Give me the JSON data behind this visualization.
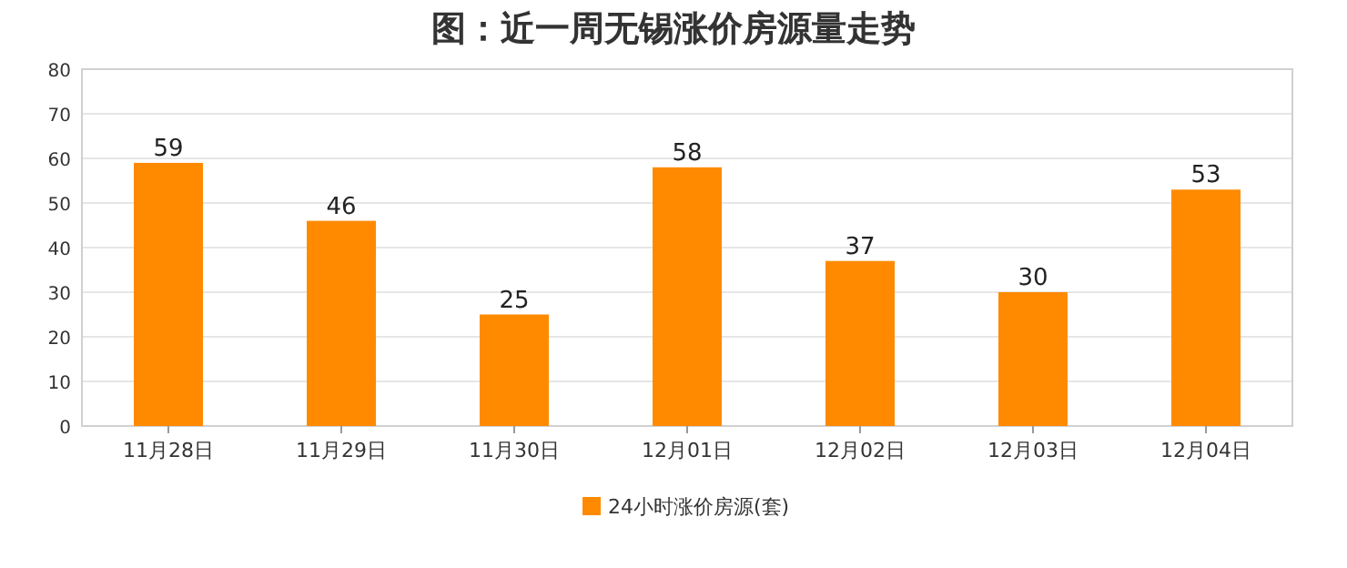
{
  "chart_data": {
    "type": "bar",
    "title": "图：近一周无锡涨价房源量走势",
    "categories": [
      "11月28日",
      "11月29日",
      "11月30日",
      "12月01日",
      "12月02日",
      "12月03日",
      "12月04日"
    ],
    "series": [
      {
        "name": "24小时涨价房源(套)",
        "color": "#ff8a00",
        "values": [
          59,
          46,
          25,
          58,
          37,
          30,
          53
        ]
      }
    ],
    "ylim": [
      0,
      80
    ],
    "yticks": [
      0,
      10,
      20,
      30,
      40,
      50,
      60,
      70,
      80
    ],
    "grid": "y",
    "legend": "bottom",
    "data_labels": true
  }
}
